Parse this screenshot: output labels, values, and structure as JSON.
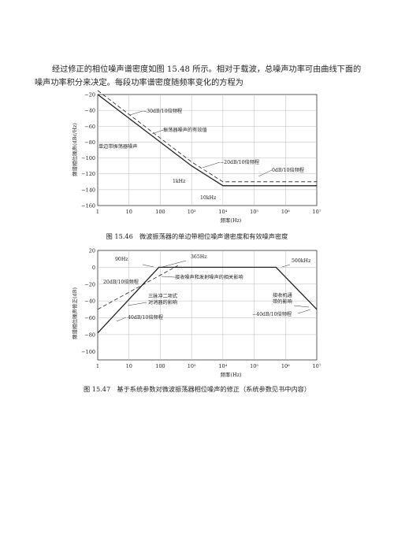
{
  "body": {
    "paragraph": "经过修正的相位噪声谱密度如图 15.48 所示。相对于载波，总噪声功率可由曲线下面的噪声功率积分来决定。每段功率谱密度随频率变化的方程为"
  },
  "figures": {
    "fig1": {
      "caption": "图 15.46　微波振荡器的单边带相位噪声谱密度和有效噪声密度",
      "ylabel": "频谱相位噪声(dBc/Hz)",
      "xlabel": "频率(Hz)",
      "annotations": {
        "slope30": "−30dB/10倍频程",
        "effective": "振荡器噪声的有效值",
        "ssb": "单边带振荡器噪声",
        "slope20": "−20dB/10倍频程",
        "slope0": "0dB/10倍频程",
        "k1": "1kHz",
        "k10": "10kHz"
      }
    },
    "fig2": {
      "caption": "图 15.47　基于系统参数对微波振荡器相位噪声的修正（系统参数见书中内容）",
      "ylabel": "频谱相位噪声修正(dB)",
      "xlabel": "频率(Hz)",
      "annotations": {
        "f90": "90Hz",
        "f365": "365Hz",
        "f500k": "500kHz",
        "slope20": "20dB/10倍频程",
        "rx_tx": "接收噪声和发射噪声的相关影响",
        "canceller_1": "三脉冲二项式",
        "canceller_2": "对消器的影响",
        "rxbw_1": "接收机通",
        "rxbw_2": "带的影响",
        "slope40a": "40dB/10倍频程",
        "slope40b": "−40dB/10倍频程"
      }
    }
  },
  "chart_data": [
    {
      "type": "line",
      "title": "",
      "xlabel": "频率(Hz)",
      "ylabel": "频谱相位噪声(dBc/Hz)",
      "x_scale": "log",
      "xlim": [
        1,
        10000000
      ],
      "ylim": [
        -160,
        -20
      ],
      "x_tick_labels": [
        "1",
        "10",
        "100",
        "10³",
        "10⁴",
        "10⁵",
        "10⁶",
        "10⁷"
      ],
      "y_tick_labels": [
        "−20",
        "−40",
        "−60",
        "−80",
        "−100",
        "−120",
        "−140",
        "−160"
      ],
      "y_ticks": [
        -20,
        -40,
        -60,
        -80,
        -100,
        -120,
        -140,
        -160
      ],
      "grid": true,
      "series": [
        {
          "name": "单边带振荡器噪声",
          "style": "solid",
          "points": [
            [
              1,
              -20
            ],
            [
              1000,
              -110
            ],
            [
              10000,
              -135
            ],
            [
              10000000,
              -135
            ]
          ]
        },
        {
          "name": "振荡器噪声的有效值",
          "style": "dashed",
          "points": [
            [
              1,
              -15
            ],
            [
              1000,
              -105
            ],
            [
              10000,
              -130
            ],
            [
              10000000,
              -130
            ]
          ]
        }
      ]
    },
    {
      "type": "line",
      "title": "",
      "xlabel": "频率(Hz)",
      "ylabel": "频谱相位噪声修正(dB)",
      "x_scale": "log",
      "xlim": [
        1,
        10000000
      ],
      "ylim": [
        -110,
        20
      ],
      "x_tick_labels": [
        "1",
        "10",
        "100",
        "10³",
        "10⁴",
        "10⁵",
        "10⁶",
        "10⁷"
      ],
      "y_tick_labels": [
        "20",
        "0",
        "−20",
        "−40",
        "−60",
        "−80",
        "−100"
      ],
      "y_ticks": [
        20,
        0,
        -20,
        -40,
        -60,
        -80,
        -100
      ],
      "grid": true,
      "series": [
        {
          "name": "三脉冲二项式对消器的影响",
          "style": "solid",
          "points": [
            [
              1,
              -78
            ],
            [
              90,
              0
            ],
            [
              500000,
              0
            ],
            [
              10000000,
              -50
            ]
          ]
        },
        {
          "name": "20dB/10倍频程",
          "style": "dashed",
          "points": [
            [
              1,
              -50
            ],
            [
              365,
              2
            ]
          ]
        }
      ]
    }
  ]
}
